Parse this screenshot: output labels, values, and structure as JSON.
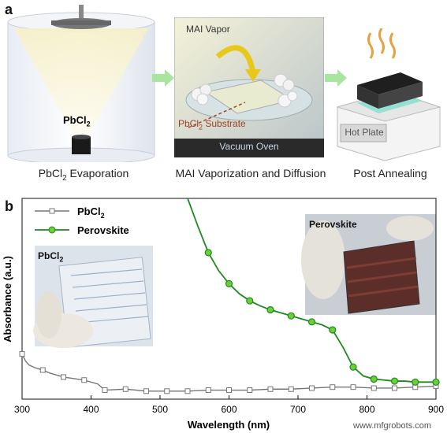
{
  "panel_a": {
    "letter": "a",
    "evaporation": {
      "material_label": "PbCl",
      "material_sub": "2",
      "caption_pre": "PbCl",
      "caption_sub": "2",
      "caption_post": " Evaporation"
    },
    "vaporization": {
      "vapor_label": "MAI Vapor",
      "substrate_label_pre": "PbCl",
      "substrate_label_sub": "2",
      "substrate_label_post": " Substrate",
      "oven_label": "Vacuum Oven",
      "caption": "MAI Vaporization and Diffusion"
    },
    "annealing": {
      "hotplate_label": "Hot Plate",
      "caption": "Post Annealing"
    },
    "colors": {
      "arrow": "#a8e6a0",
      "vapor_arrow": "#e8c81a",
      "oven_bar": "#2a2a2a",
      "film": "#2a2a2a",
      "substrate_glow": "#7fe0d0"
    }
  },
  "panel_b": {
    "letter": "b",
    "photo_left_label_pre": "PbCl",
    "photo_left_label_sub": "2",
    "photo_right_label": "Perovskite",
    "chart_data": {
      "type": "line",
      "xlabel": "Wavelength (nm)",
      "ylabel": "Absorbance (a.u.)",
      "xlim": [
        300,
        900
      ],
      "xticks": [
        300,
        400,
        500,
        600,
        700,
        800,
        900
      ],
      "ylim": [
        0,
        1
      ],
      "legend_position": "top-left",
      "series": [
        {
          "name": "PbCl",
          "name_sub": "2",
          "color": "#777777",
          "marker": "open-square",
          "x": [
            300,
            305,
            310,
            320,
            330,
            340,
            360,
            390,
            410,
            420,
            450,
            480,
            510,
            540,
            570,
            600,
            630,
            660,
            690,
            720,
            750,
            780,
            810,
            840,
            870,
            900
          ],
          "y": [
            0.225,
            0.19,
            0.17,
            0.155,
            0.145,
            0.13,
            0.11,
            0.095,
            0.075,
            0.045,
            0.05,
            0.04,
            0.04,
            0.04,
            0.045,
            0.045,
            0.045,
            0.05,
            0.05,
            0.055,
            0.06,
            0.06,
            0.055,
            0.055,
            0.06,
            0.065
          ]
        },
        {
          "name": "Perovskite",
          "color": "#1e8a1e",
          "marker_fill": "#6ccf3a",
          "marker": "filled-circle",
          "x": [
            540,
            555,
            570,
            585,
            600,
            615,
            630,
            645,
            660,
            675,
            690,
            705,
            720,
            735,
            750,
            765,
            780,
            795,
            810,
            825,
            840,
            855,
            870,
            885,
            900
          ],
          "y": [
            1.0,
            0.86,
            0.73,
            0.64,
            0.575,
            0.525,
            0.49,
            0.465,
            0.445,
            0.43,
            0.415,
            0.4,
            0.385,
            0.37,
            0.345,
            0.26,
            0.16,
            0.115,
            0.1,
            0.095,
            0.09,
            0.09,
            0.085,
            0.085,
            0.085
          ],
          "marker_x": [
            570,
            600,
            630,
            660,
            690,
            720,
            750,
            780,
            810,
            840,
            870,
            900
          ]
        }
      ]
    }
  },
  "watermark": "www.mfgrobots.com"
}
